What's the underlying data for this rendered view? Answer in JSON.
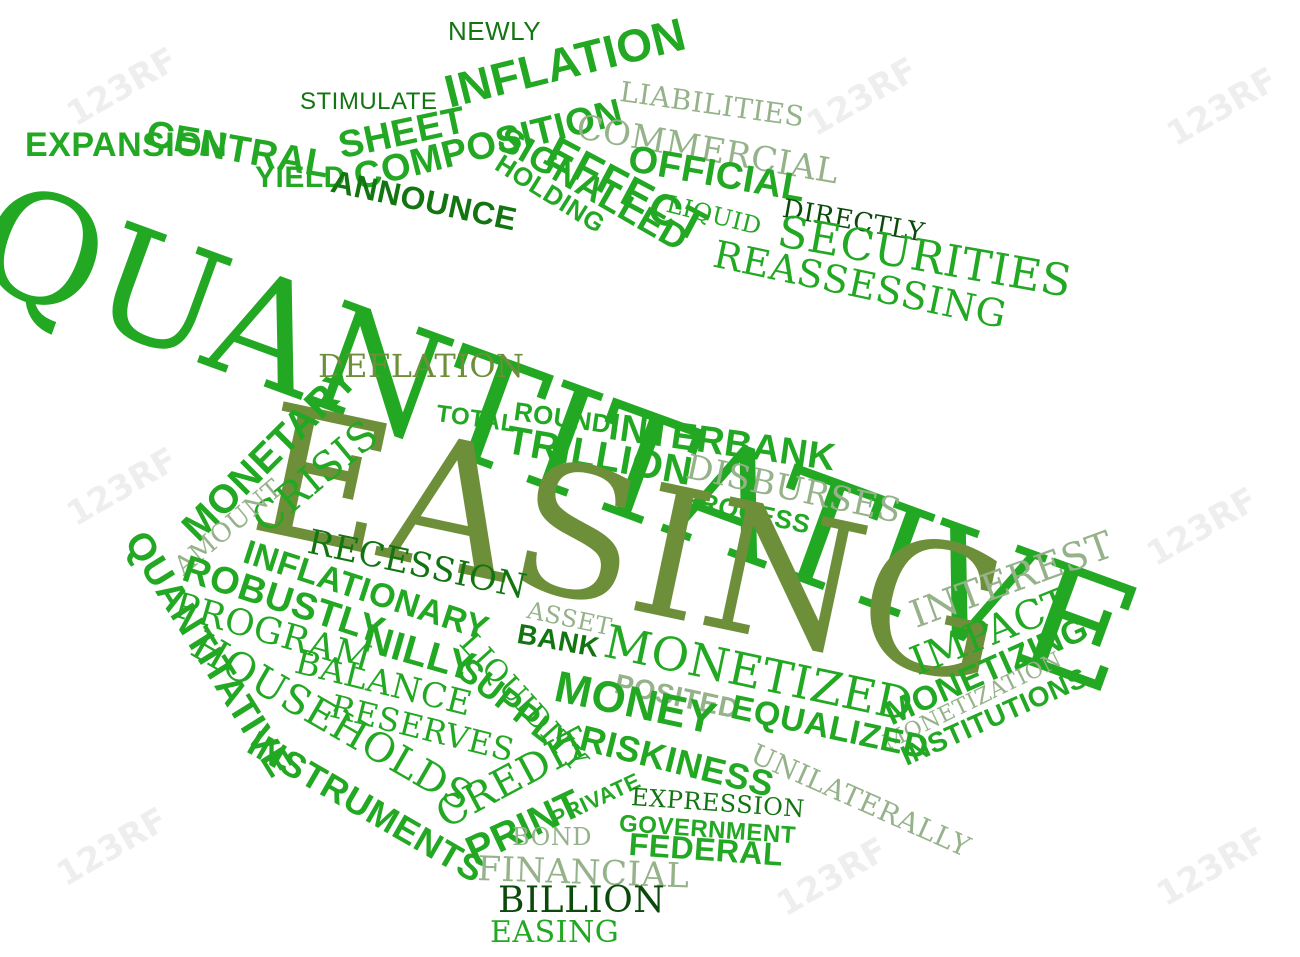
{
  "colors": {
    "green": "#22a822",
    "dark_green": "#127512",
    "olive": "#6e8f3a",
    "gray_green": "#95b28a",
    "black_green": "#0b4a0b"
  },
  "watermark": "123RF",
  "words": [
    "NEWLY",
    "INFLATION",
    "STIMULATE",
    "SHEET",
    "COMPOSITION",
    "CENTRAL",
    "EXPANSION",
    "YIELD",
    "ANNOUNCE",
    "LIABILITIES",
    "COMMERCIAL",
    "SIGNALLED",
    "HOLDING",
    "EFFECT",
    "OFFICIAL",
    "LIQUID",
    "DIRECTLY",
    "SECURITIES",
    "REASSESSING",
    "QUANTITATIVE",
    "DEFLATION",
    "ROUND",
    "TOTAL",
    "TRILLION",
    "INTERBANK",
    "DISBURSES",
    "PROCESS",
    "EASING",
    "MONETARY",
    "CRISIS",
    "AMOUNT",
    "QUANTITATIVE",
    "RECESSION",
    "INFLATIONARY",
    "ROBUSTLY",
    "PROGRAM",
    "NILLY",
    "ASSET",
    "BANK",
    "LIQUIDITY",
    "SUPPLY",
    "BALANCE",
    "HOUSEHOLDS",
    "RESERVES",
    "INSTRUMENTS",
    "INTEREST",
    "IMPACT",
    "MONETIZING",
    "MONETIZATION",
    "INSTITUTIONS",
    "MONETIZED",
    "POSITED",
    "MONEY",
    "EQUALIZED",
    "RISKINESS",
    "UNILATERALLY",
    "CREDIT",
    "PRINT",
    "PRIVATE",
    "EXPRESSION",
    "GOVERNMENT",
    "FEDERAL",
    "BOND",
    "FINANCIAL",
    "BILLION",
    "EASING"
  ]
}
